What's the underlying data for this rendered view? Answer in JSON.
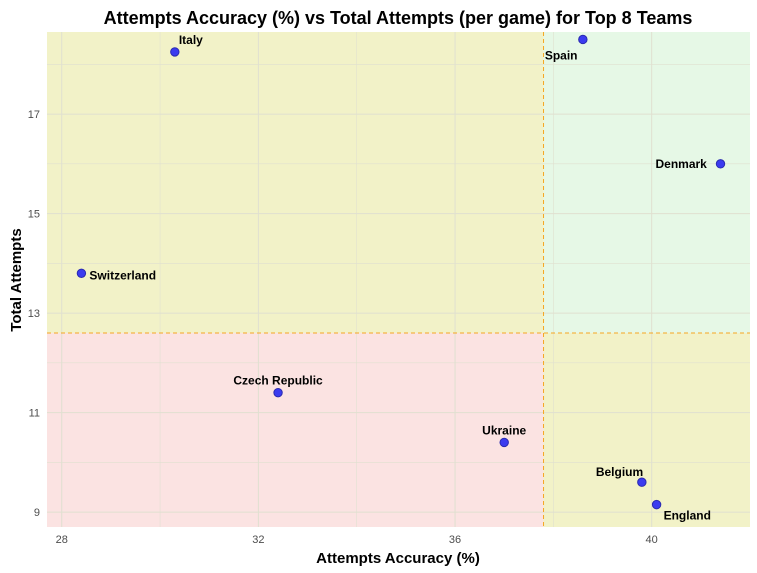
{
  "chart_data": {
    "type": "scatter",
    "title": "Attempts Accuracy (%) vs Total Attempts (per game) for Top 8 Teams",
    "xlabel": "Attempts Accuracy (%)",
    "ylabel": "Total Attempts",
    "xlim": [
      27.7,
      42.0
    ],
    "ylim": [
      8.7,
      18.65
    ],
    "x_ticks": [
      28,
      32,
      36,
      40
    ],
    "y_ticks": [
      9,
      11,
      13,
      15,
      17
    ],
    "grid": true,
    "reference_lines": {
      "x": 37.8,
      "y": 12.6
    },
    "colors": {
      "point_fill": "#3b3bef",
      "point_stroke": "#2a2ab0",
      "ref_line": "#f5a623",
      "quadrant_top_left": "#f2f2c8",
      "quadrant_top_right": "#e6f8e6",
      "quadrant_bottom_left": "#fbe3e2",
      "quadrant_bottom_right": "#f2f2c8",
      "grid": "#e0e0d0"
    },
    "points": [
      {
        "name": "Italy",
        "x": 30.3,
        "y": 18.25,
        "label_pos": "above-right"
      },
      {
        "name": "Spain",
        "x": 38.6,
        "y": 18.5,
        "label_pos": "below-left"
      },
      {
        "name": "Denmark",
        "x": 41.4,
        "y": 16.0,
        "label_pos": "left"
      },
      {
        "name": "Switzerland",
        "x": 28.4,
        "y": 13.8,
        "label_pos": "right"
      },
      {
        "name": "Czech Republic",
        "x": 32.4,
        "y": 11.4,
        "label_pos": "above"
      },
      {
        "name": "Ukraine",
        "x": 37.0,
        "y": 10.4,
        "label_pos": "above"
      },
      {
        "name": "Belgium",
        "x": 39.8,
        "y": 9.6,
        "label_pos": "above-left"
      },
      {
        "name": "England",
        "x": 40.1,
        "y": 9.15,
        "label_pos": "below-right"
      }
    ]
  }
}
